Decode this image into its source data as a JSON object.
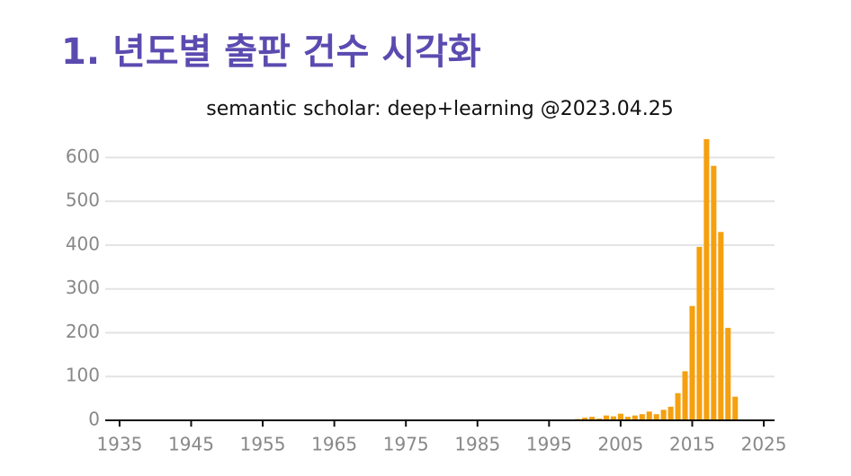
{
  "page_title": "1. 년도별 출판 건수 시각화",
  "chart_data": {
    "type": "bar",
    "title": "semantic scholar: deep+learning @2023.04.25",
    "x": [
      1997,
      1998,
      1999,
      2000,
      2001,
      2002,
      2003,
      2004,
      2005,
      2006,
      2007,
      2008,
      2009,
      2010,
      2011,
      2012,
      2013,
      2014,
      2015,
      2016,
      2017,
      2018,
      2019,
      2020,
      2021
    ],
    "values": [
      1,
      2,
      3,
      6,
      8,
      4,
      11,
      9,
      15,
      8,
      11,
      14,
      20,
      14,
      24,
      31,
      62,
      112,
      261,
      396,
      642,
      581,
      430,
      211,
      54
    ],
    "color": "#f5a00f",
    "xlim": [
      1933,
      2026.5
    ],
    "xticks": [
      1935,
      1945,
      1955,
      1965,
      1975,
      1985,
      1995,
      2005,
      2015,
      2025
    ],
    "ylim": [
      0,
      650
    ],
    "yticks": [
      0,
      100,
      200,
      300,
      400,
      500,
      600
    ],
    "grid": true
  }
}
